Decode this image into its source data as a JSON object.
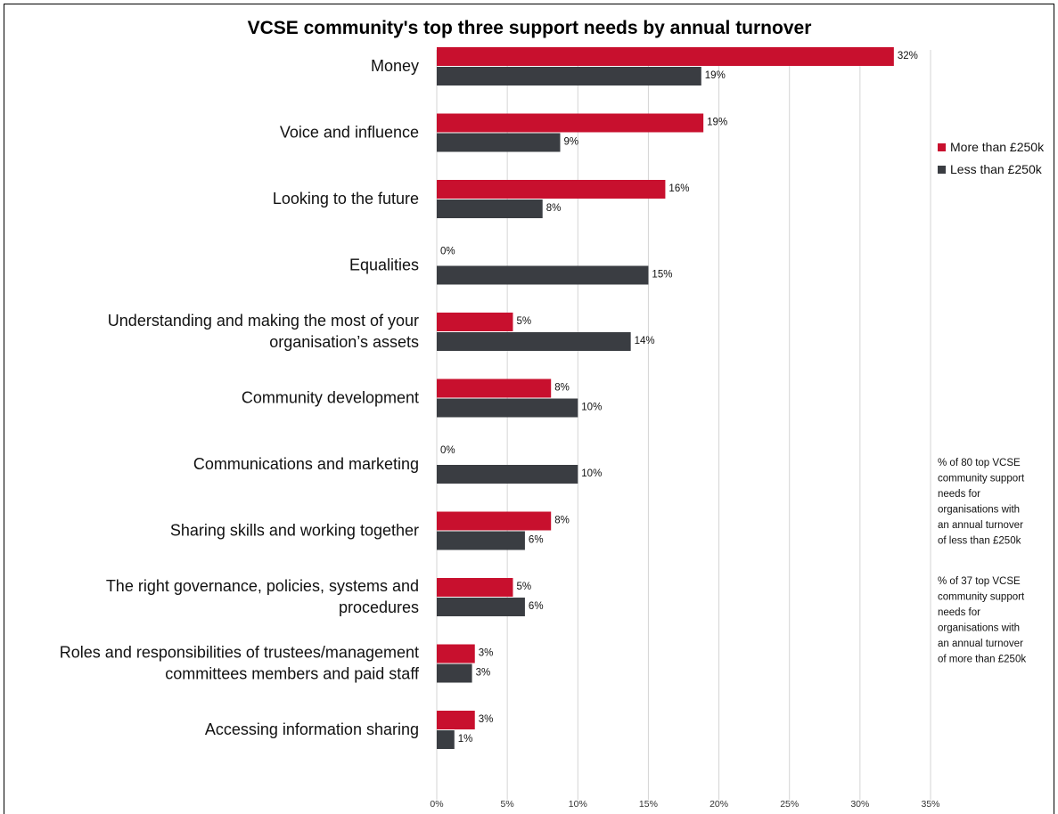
{
  "chart_data": {
    "type": "bar",
    "orientation": "horizontal",
    "title": "VCSE community's top three support needs by annual turnover",
    "categories": [
      [
        "Money"
      ],
      [
        "Voice and influence"
      ],
      [
        "Looking to the future"
      ],
      [
        "Equalities"
      ],
      [
        "Understanding and making the most of your",
        "organisation’s assets"
      ],
      [
        "Community development"
      ],
      [
        "Communications and marketing"
      ],
      [
        "Sharing skills and working together"
      ],
      [
        "The right governance, policies, systems and",
        "procedures"
      ],
      [
        "Roles and responsibilities of trustees/management",
        "committees members and paid staff"
      ],
      [
        "Accessing information sharing"
      ]
    ],
    "series": [
      {
        "name": "More than £250k",
        "color": "#c8102e",
        "values": [
          32.4,
          18.9,
          16.2,
          0,
          5.4,
          8.1,
          0,
          8.1,
          5.4,
          2.7,
          2.7
        ],
        "labels": [
          "32%",
          "19%",
          "16%",
          "0%",
          "5%",
          "8%",
          "0%",
          "8%",
          "5%",
          "3%",
          "3%"
        ]
      },
      {
        "name": "Less than £250k",
        "color": "#3a3d42",
        "values": [
          18.75,
          8.75,
          7.5,
          15,
          13.75,
          10,
          10,
          6.25,
          6.25,
          2.5,
          1.25
        ],
        "labels": [
          "19%",
          "9%",
          "8%",
          "15%",
          "14%",
          "10%",
          "10%",
          "6%",
          "6%",
          "3%",
          "1%"
        ]
      }
    ],
    "xlim": [
      0,
      35
    ],
    "xticks": [
      0,
      5,
      10,
      15,
      20,
      25,
      30,
      35
    ],
    "xtick_labels": [
      "0%",
      "5%",
      "10%",
      "15%",
      "20%",
      "25%",
      "30%",
      "35%"
    ],
    "grid": "vertical",
    "legend_position": "right",
    "notes": [
      [
        "% of 80 top  VCSE",
        "community  support",
        "needs for",
        "organisations with",
        "an annual turnover",
        "of less than £250k"
      ],
      [
        "% of 37 top  VCSE",
        "community support",
        "needs for",
        "organisations with",
        "an annual turnover",
        "of more than £250k"
      ]
    ]
  }
}
